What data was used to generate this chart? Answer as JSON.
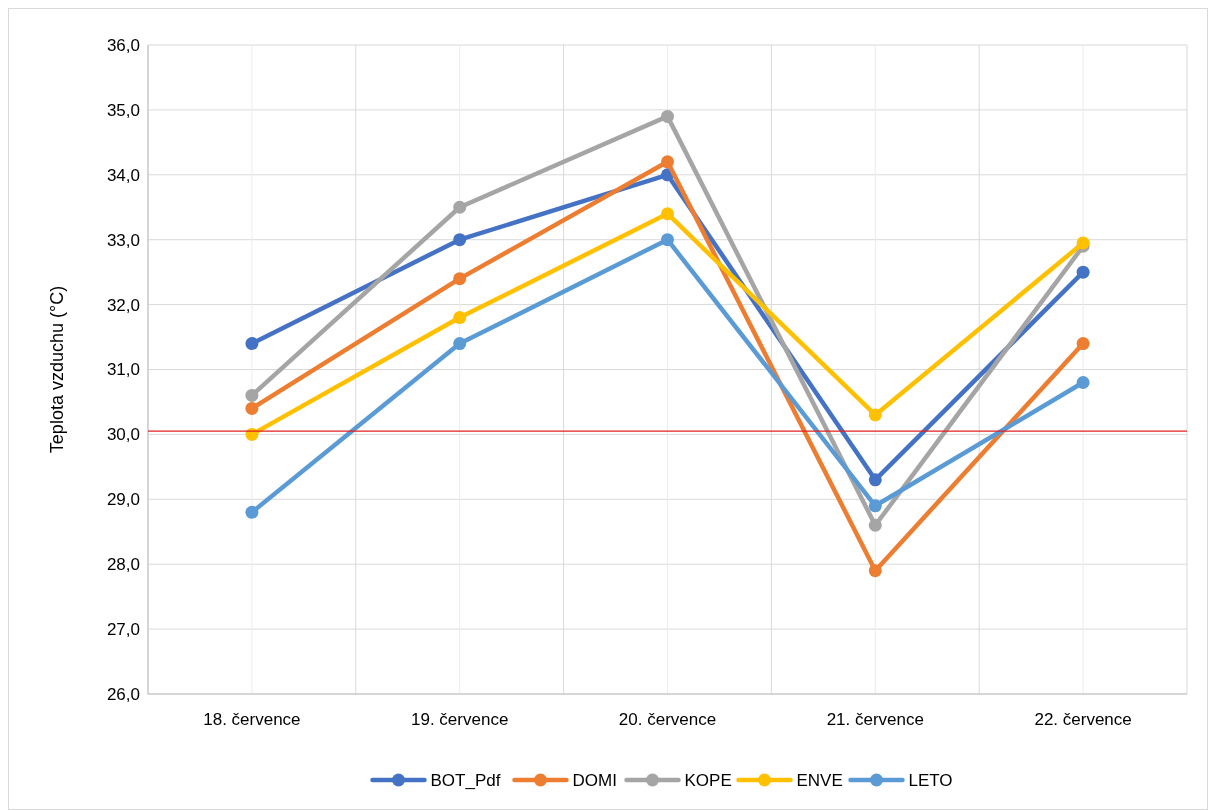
{
  "chart_data": {
    "type": "line",
    "ylabel": "Teplota vzduchu (°C)",
    "categories": [
      "18. července",
      "19. července",
      "20. července",
      "21. července",
      "22. července"
    ],
    "series": [
      {
        "name": "BOT_Pdf",
        "color": "#4472c4",
        "values": [
          31.4,
          33.0,
          34.0,
          29.3,
          32.5
        ]
      },
      {
        "name": "DOMI",
        "color": "#ed7d31",
        "values": [
          30.4,
          32.4,
          34.2,
          27.9,
          31.4
        ]
      },
      {
        "name": "KOPE",
        "color": "#a5a5a5",
        "values": [
          30.6,
          33.5,
          34.9,
          28.6,
          32.9
        ]
      },
      {
        "name": "ENVE",
        "color": "#ffc000",
        "values": [
          30.0,
          31.8,
          33.4,
          30.3,
          32.95
        ]
      },
      {
        "name": "LETO",
        "color": "#5b9bd5",
        "values": [
          28.8,
          31.4,
          33.0,
          28.9,
          30.8
        ]
      }
    ],
    "ylim": [
      26,
      36
    ],
    "yticks": [
      {
        "value": 26,
        "label": "26,0"
      },
      {
        "value": 27,
        "label": "27,0"
      },
      {
        "value": 28,
        "label": "28,0"
      },
      {
        "value": 29,
        "label": "29,0"
      },
      {
        "value": 30,
        "label": "30,0"
      },
      {
        "value": 31,
        "label": "31,0"
      },
      {
        "value": 32,
        "label": "32,0"
      },
      {
        "value": 33,
        "label": "33,0"
      },
      {
        "value": 34,
        "label": "34,0"
      },
      {
        "value": 35,
        "label": "35,0"
      },
      {
        "value": 36,
        "label": "36,0"
      }
    ],
    "ref_lines": [
      {
        "axis": "y",
        "value": 30.05,
        "label": null,
        "color": "#e02020"
      }
    ],
    "grid": true,
    "legend": "bottom",
    "marker": "circle",
    "line_style": "solid"
  }
}
